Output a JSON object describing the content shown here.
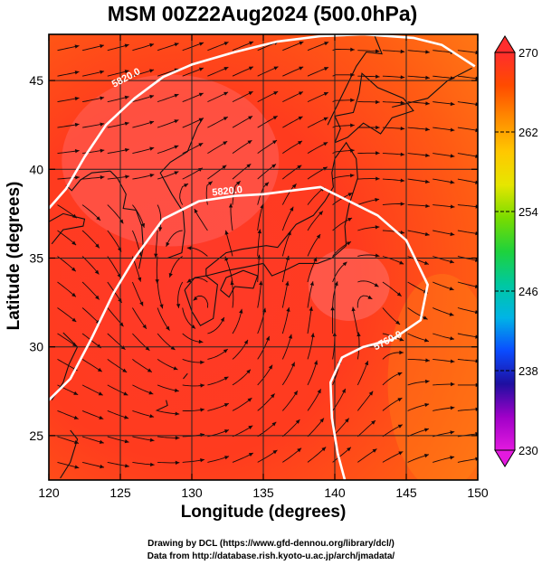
{
  "chart_data": {
    "type": "heatmap",
    "title": "MSM 00Z22Aug2024 (500.0hPa)",
    "xlabel": "Longitude (degrees)",
    "ylabel": "Latitude  (degrees)",
    "xlim": [
      120,
      150
    ],
    "ylim": [
      22.5,
      47.6
    ],
    "xticks": [
      120,
      125,
      130,
      135,
      140,
      145,
      150
    ],
    "yticks": [
      25,
      30,
      35,
      40,
      45
    ],
    "grid": true,
    "colorbar": {
      "range": [
        230,
        270
      ],
      "ticks": [
        270,
        262,
        254,
        246,
        238,
        230
      ],
      "colors": [
        "#e31adf",
        "#a000c8",
        "#1e0fa0",
        "#0a4cff",
        "#00b4e6",
        "#00c8a0",
        "#1ed23c",
        "#78dc00",
        "#e6e600",
        "#ffc800",
        "#ff8c00",
        "#ff4b00",
        "#ff2d2d"
      ]
    },
    "contours": [
      {
        "label": "5820.0",
        "points": [
          [
            120.0,
            27.0
          ],
          [
            121.5,
            28.2
          ],
          [
            123.0,
            30.5
          ],
          [
            124.5,
            33.0
          ],
          [
            126.0,
            35.0
          ],
          [
            128.0,
            37.2
          ],
          [
            130.5,
            38.2
          ],
          [
            133.0,
            38.5
          ],
          [
            135.0,
            38.6
          ],
          [
            137.0,
            38.8
          ],
          [
            139.0,
            39.0
          ],
          [
            141.0,
            38.2
          ],
          [
            143.0,
            37.4
          ],
          [
            145.0,
            36.0
          ],
          [
            146.5,
            33.5
          ],
          [
            146.0,
            31.5
          ],
          [
            144.0,
            30.4
          ],
          [
            142.0,
            30.0
          ],
          [
            140.5,
            29.4
          ],
          [
            139.7,
            28.0
          ],
          [
            139.8,
            26.0
          ],
          [
            140.2,
            24.0
          ],
          [
            140.7,
            22.5
          ]
        ]
      },
      {
        "label": "5760.0",
        "points": [
          [
            120.0,
            37.8
          ],
          [
            121.2,
            38.9
          ],
          [
            122.5,
            40.7
          ],
          [
            124.0,
            42.5
          ],
          [
            126.0,
            44.0
          ],
          [
            128.0,
            45.2
          ],
          [
            130.0,
            45.9
          ],
          [
            133.0,
            46.6
          ],
          [
            136.0,
            47.2
          ],
          [
            139.0,
            47.5
          ],
          [
            142.0,
            47.6
          ],
          [
            145.5,
            47.4
          ],
          [
            147.5,
            47.0
          ],
          [
            149.8,
            45.8
          ]
        ]
      }
    ],
    "contour_labels": [
      "5820.0",
      "5760.0",
      "5820.0"
    ]
  },
  "credits": {
    "line1": "Drawing by DCL (https://www.gfd-dennou.org/library/dcl/)",
    "line2": "Data from http://database.rish.kyoto-u.ac.jp/arch/jmadata/"
  }
}
